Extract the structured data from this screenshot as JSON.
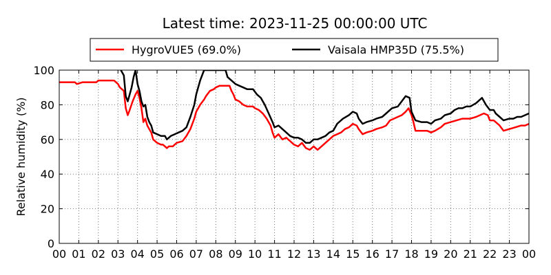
{
  "chart_data": {
    "type": "line",
    "title": "Latest time: 2023-11-25 00:00:00 UTC",
    "xlabel": "",
    "ylabel": "Relative humidity (%)",
    "xlim": [
      0,
      24
    ],
    "ylim": [
      0,
      100
    ],
    "x_ticks": [
      "00",
      "01",
      "02",
      "03",
      "04",
      "05",
      "06",
      "07",
      "08",
      "09",
      "10",
      "11",
      "12",
      "13",
      "14",
      "15",
      "16",
      "17",
      "18",
      "19",
      "20",
      "21",
      "22",
      "23",
      "00"
    ],
    "y_ticks": [
      0,
      20,
      40,
      60,
      80,
      100
    ],
    "grid": true,
    "legend_position": "top",
    "series": [
      {
        "name": "HygroVUE5 (69.0%)",
        "color": "#ff0000",
        "points": [
          [
            0.0,
            93
          ],
          [
            0.5,
            93
          ],
          [
            0.8,
            93
          ],
          [
            0.9,
            92
          ],
          [
            1.2,
            93
          ],
          [
            1.5,
            93
          ],
          [
            1.9,
            93
          ],
          [
            2.0,
            94
          ],
          [
            2.5,
            94
          ],
          [
            2.8,
            94
          ],
          [
            3.0,
            92
          ],
          [
            3.1,
            90
          ],
          [
            3.3,
            88
          ],
          [
            3.4,
            78
          ],
          [
            3.5,
            74
          ],
          [
            3.6,
            77
          ],
          [
            3.75,
            82
          ],
          [
            3.9,
            86
          ],
          [
            4.0,
            88
          ],
          [
            4.1,
            84
          ],
          [
            4.2,
            78
          ],
          [
            4.3,
            70
          ],
          [
            4.4,
            72
          ],
          [
            4.5,
            68
          ],
          [
            4.6,
            66
          ],
          [
            4.7,
            64
          ],
          [
            4.8,
            60
          ],
          [
            5.0,
            58
          ],
          [
            5.2,
            57
          ],
          [
            5.3,
            57
          ],
          [
            5.4,
            56
          ],
          [
            5.5,
            55
          ],
          [
            5.6,
            56
          ],
          [
            5.8,
            56
          ],
          [
            6.0,
            58
          ],
          [
            6.3,
            59
          ],
          [
            6.5,
            62
          ],
          [
            6.7,
            66
          ],
          [
            6.9,
            72
          ],
          [
            7.0,
            76
          ],
          [
            7.2,
            80
          ],
          [
            7.4,
            83
          ],
          [
            7.5,
            85
          ],
          [
            7.7,
            88
          ],
          [
            7.9,
            89
          ],
          [
            8.0,
            90
          ],
          [
            8.2,
            91
          ],
          [
            8.5,
            91
          ],
          [
            8.7,
            91
          ],
          [
            8.8,
            88
          ],
          [
            8.9,
            86
          ],
          [
            9.0,
            83
          ],
          [
            9.2,
            82
          ],
          [
            9.4,
            80
          ],
          [
            9.6,
            79
          ],
          [
            9.9,
            79
          ],
          [
            10.0,
            78
          ],
          [
            10.2,
            77
          ],
          [
            10.4,
            75
          ],
          [
            10.6,
            72
          ],
          [
            10.8,
            68
          ],
          [
            10.9,
            64
          ],
          [
            11.0,
            61
          ],
          [
            11.2,
            63
          ],
          [
            11.4,
            60
          ],
          [
            11.6,
            61
          ],
          [
            11.8,
            59
          ],
          [
            12.0,
            57
          ],
          [
            12.2,
            56
          ],
          [
            12.4,
            58
          ],
          [
            12.6,
            55
          ],
          [
            12.8,
            54
          ],
          [
            13.0,
            56
          ],
          [
            13.2,
            54
          ],
          [
            13.4,
            56
          ],
          [
            13.6,
            58
          ],
          [
            13.8,
            60
          ],
          [
            14.0,
            62
          ],
          [
            14.2,
            63
          ],
          [
            14.4,
            64
          ],
          [
            14.6,
            66
          ],
          [
            14.8,
            67
          ],
          [
            15.0,
            69
          ],
          [
            15.2,
            68
          ],
          [
            15.3,
            66
          ],
          [
            15.5,
            63
          ],
          [
            15.7,
            64
          ],
          [
            16.0,
            65
          ],
          [
            16.2,
            66
          ],
          [
            16.5,
            67
          ],
          [
            16.7,
            68
          ],
          [
            16.9,
            71
          ],
          [
            17.1,
            72
          ],
          [
            17.3,
            73
          ],
          [
            17.5,
            74
          ],
          [
            17.7,
            76
          ],
          [
            17.85,
            78
          ],
          [
            18.0,
            74
          ],
          [
            18.1,
            70
          ],
          [
            18.2,
            65
          ],
          [
            18.5,
            65
          ],
          [
            18.8,
            65
          ],
          [
            19.0,
            64
          ],
          [
            19.2,
            65
          ],
          [
            19.5,
            67
          ],
          [
            19.7,
            69
          ],
          [
            20.0,
            70
          ],
          [
            20.3,
            71
          ],
          [
            20.6,
            72
          ],
          [
            21.0,
            72
          ],
          [
            21.3,
            73
          ],
          [
            21.5,
            74
          ],
          [
            21.7,
            75
          ],
          [
            21.9,
            74
          ],
          [
            22.0,
            71
          ],
          [
            22.2,
            71
          ],
          [
            22.3,
            70
          ],
          [
            22.5,
            68
          ],
          [
            22.7,
            65
          ],
          [
            23.0,
            66
          ],
          [
            23.3,
            67
          ],
          [
            23.6,
            68
          ],
          [
            23.8,
            68
          ],
          [
            24.0,
            69
          ]
        ]
      },
      {
        "name": "Vaisala HMP35D (75.5%)",
        "color": "#000000",
        "points": [
          [
            3.15,
            100
          ],
          [
            3.3,
            97
          ],
          [
            3.4,
            85
          ],
          [
            3.5,
            82
          ],
          [
            3.6,
            86
          ],
          [
            3.7,
            90
          ],
          [
            3.8,
            96
          ],
          [
            3.9,
            100
          ],
          [
            4.0,
            92
          ],
          [
            4.1,
            88
          ],
          [
            4.2,
            82
          ],
          [
            4.3,
            79
          ],
          [
            4.4,
            80
          ],
          [
            4.5,
            73
          ],
          [
            4.6,
            70
          ],
          [
            4.7,
            68
          ],
          [
            4.8,
            64
          ],
          [
            5.0,
            63
          ],
          [
            5.2,
            62
          ],
          [
            5.4,
            62
          ],
          [
            5.5,
            60
          ],
          [
            5.7,
            62
          ],
          [
            5.9,
            63
          ],
          [
            6.1,
            64
          ],
          [
            6.3,
            65
          ],
          [
            6.5,
            67
          ],
          [
            6.7,
            73
          ],
          [
            6.9,
            80
          ],
          [
            7.0,
            86
          ],
          [
            7.2,
            94
          ],
          [
            7.4,
            100
          ],
          [
            7.5,
            100
          ],
          [
            7.7,
            100
          ],
          [
            7.9,
            100
          ],
          [
            8.0,
            100
          ],
          [
            8.2,
            100
          ],
          [
            8.5,
            100
          ],
          [
            8.6,
            96
          ],
          [
            8.7,
            95
          ],
          [
            8.9,
            93
          ],
          [
            9.0,
            92
          ],
          [
            9.2,
            91
          ],
          [
            9.4,
            90
          ],
          [
            9.6,
            89
          ],
          [
            9.9,
            89
          ],
          [
            10.1,
            86
          ],
          [
            10.3,
            84
          ],
          [
            10.5,
            80
          ],
          [
            10.7,
            75
          ],
          [
            10.9,
            70
          ],
          [
            11.0,
            67
          ],
          [
            11.2,
            68
          ],
          [
            11.4,
            66
          ],
          [
            11.6,
            64
          ],
          [
            11.8,
            62
          ],
          [
            12.0,
            61
          ],
          [
            12.2,
            61
          ],
          [
            12.4,
            60
          ],
          [
            12.6,
            58
          ],
          [
            12.8,
            58
          ],
          [
            13.0,
            60
          ],
          [
            13.2,
            60
          ],
          [
            13.4,
            61
          ],
          [
            13.6,
            62
          ],
          [
            13.8,
            64
          ],
          [
            14.0,
            65
          ],
          [
            14.2,
            69
          ],
          [
            14.5,
            72
          ],
          [
            14.8,
            74
          ],
          [
            15.0,
            76
          ],
          [
            15.2,
            75
          ],
          [
            15.3,
            72
          ],
          [
            15.5,
            69
          ],
          [
            15.7,
            70
          ],
          [
            16.0,
            71
          ],
          [
            16.2,
            72
          ],
          [
            16.5,
            73
          ],
          [
            16.7,
            75
          ],
          [
            17.0,
            78
          ],
          [
            17.3,
            79
          ],
          [
            17.5,
            82
          ],
          [
            17.7,
            85
          ],
          [
            17.9,
            84
          ],
          [
            18.0,
            76
          ],
          [
            18.2,
            71
          ],
          [
            18.5,
            70
          ],
          [
            18.8,
            70
          ],
          [
            19.0,
            69
          ],
          [
            19.2,
            71
          ],
          [
            19.5,
            72
          ],
          [
            19.7,
            74
          ],
          [
            20.0,
            75
          ],
          [
            20.2,
            77
          ],
          [
            20.4,
            78
          ],
          [
            20.6,
            78
          ],
          [
            20.8,
            79
          ],
          [
            21.0,
            79
          ],
          [
            21.3,
            81
          ],
          [
            21.6,
            84
          ],
          [
            21.8,
            80
          ],
          [
            22.0,
            77
          ],
          [
            22.2,
            77
          ],
          [
            22.3,
            75
          ],
          [
            22.5,
            73
          ],
          [
            22.7,
            71
          ],
          [
            23.0,
            72
          ],
          [
            23.2,
            72
          ],
          [
            23.4,
            73
          ],
          [
            23.6,
            73
          ],
          [
            23.8,
            74
          ],
          [
            24.0,
            75
          ]
        ]
      }
    ]
  }
}
